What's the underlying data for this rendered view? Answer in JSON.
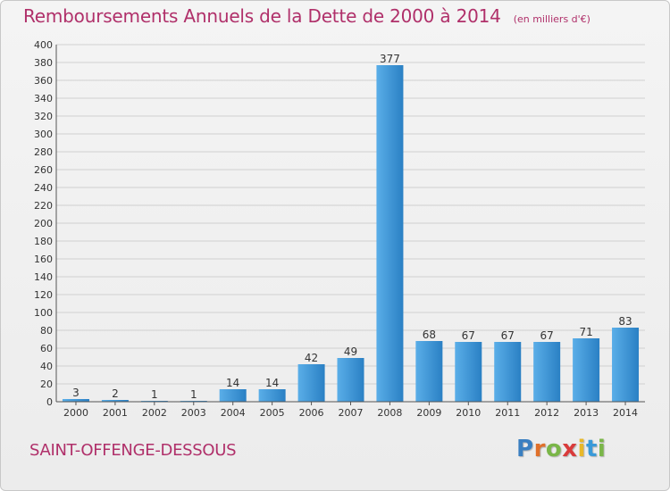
{
  "header": {
    "title": "Remboursements Annuels de la Dette de 2000 à 2014",
    "unit": "(en milliers d'€)"
  },
  "footer": {
    "commune": "SAINT-OFFENGE-DESSOUS"
  },
  "logo": {
    "text": "Proxiti",
    "letters": [
      {
        "ch": "P",
        "color": "#3a7fc1"
      },
      {
        "ch": "r",
        "color": "#e0702a"
      },
      {
        "ch": "o",
        "color": "#7ab648"
      },
      {
        "ch": "x",
        "color": "#d93b3b"
      },
      {
        "ch": "i",
        "color": "#e8b829"
      },
      {
        "ch": "t",
        "color": "#3a9ad9"
      },
      {
        "ch": "i",
        "color": "#7ab648"
      }
    ]
  },
  "colors": {
    "title": "#b0306a",
    "bar_light": "#5aaee8",
    "bar_dark": "#2878bd",
    "grid": "#d0d0d0",
    "axis_text": "#333333"
  },
  "chart_data": {
    "type": "bar",
    "title": "Remboursements Annuels de la Dette de 2000 à 2014",
    "subtitle": "(en milliers d'€)",
    "xlabel": "",
    "ylabel": "",
    "categories": [
      "2000",
      "2001",
      "2002",
      "2003",
      "2004",
      "2005",
      "2006",
      "2007",
      "2008",
      "2009",
      "2010",
      "2011",
      "2012",
      "2013",
      "2014"
    ],
    "values": [
      3,
      2,
      1,
      1,
      14,
      14,
      42,
      49,
      377,
      68,
      67,
      67,
      67,
      71,
      83
    ],
    "ylim": [
      0,
      400
    ],
    "yticks": [
      0,
      20,
      40,
      60,
      80,
      100,
      120,
      140,
      160,
      180,
      200,
      220,
      240,
      260,
      280,
      300,
      320,
      340,
      360,
      380,
      400
    ],
    "grid": true,
    "data_labels": true,
    "legend": "none"
  }
}
